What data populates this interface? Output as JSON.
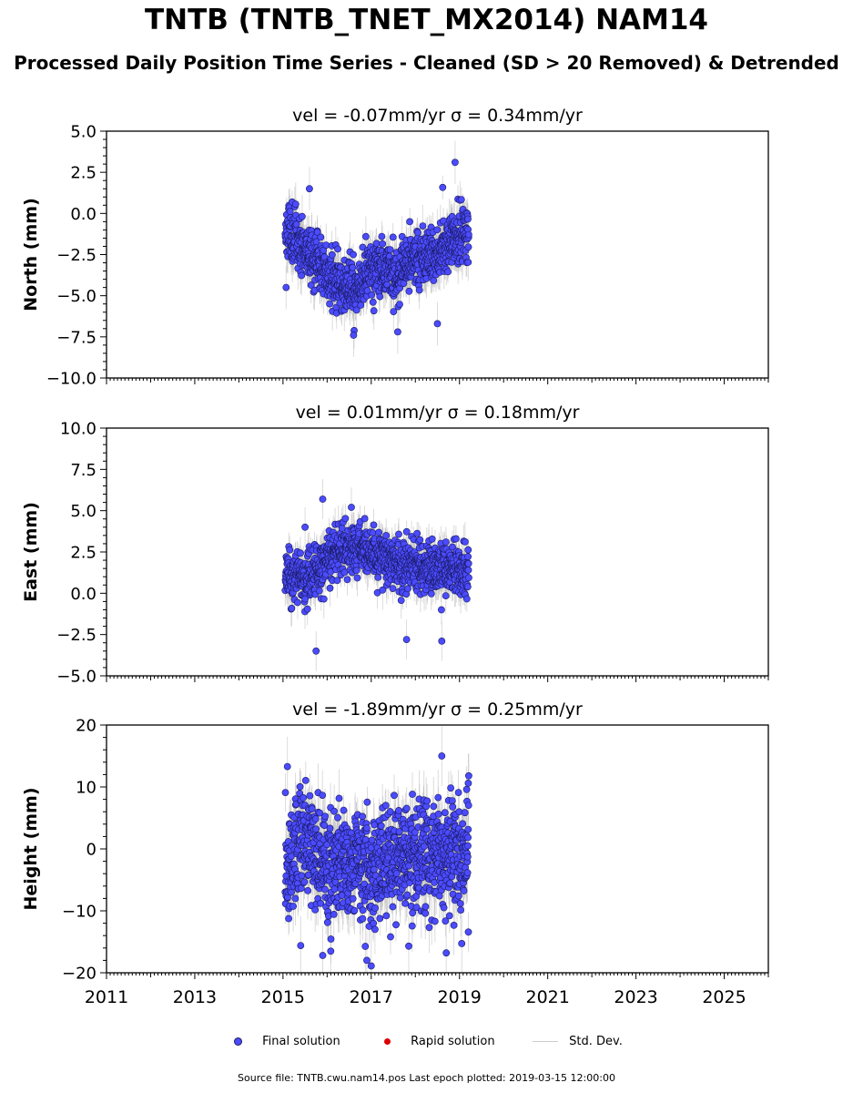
{
  "title": "TNTB (TNTB_TNET_MX2014) NAM14",
  "subtitle": "Processed Daily Position Time Series - Cleaned (SD > 20 Removed) & Detrended",
  "colors": {
    "final": "#4b4bff",
    "final_edge": "#1a1a60",
    "rapid": "#dd0000",
    "std": "#999999"
  },
  "legend": {
    "final": "Final solution",
    "rapid": "Rapid solution",
    "std": "Std. Dev."
  },
  "footer": "Source file: TNTB.cwu.nam14.pos  Last epoch plotted: 2019-03-15 12:00:00",
  "chart_data": [
    {
      "type": "scatter",
      "name": "north",
      "title": "vel = -0.07mm/yr   σ = 0.34mm/yr",
      "ylabel": "North (mm)",
      "xlim": [
        2011,
        2026
      ],
      "ylim": [
        -10,
        5
      ],
      "yticks": [
        5.0,
        2.5,
        0.0,
        -2.5,
        -5.0,
        -7.5,
        -10.0
      ],
      "ytick_labels": [
        "5.0",
        "2.5",
        "0.0",
        "−2.5",
        "−5.0",
        "−7.5",
        "−10.0"
      ],
      "time_range": [
        2015.05,
        2019.21
      ],
      "trend_points": [
        [
          2015.1,
          -1.0
        ],
        [
          2015.5,
          -2.0
        ],
        [
          2015.9,
          -3.3
        ],
        [
          2016.3,
          -4.3
        ],
        [
          2016.6,
          -4.6
        ],
        [
          2016.9,
          -3.6
        ],
        [
          2017.3,
          -3.2
        ],
        [
          2017.6,
          -3.7
        ],
        [
          2017.9,
          -2.8
        ],
        [
          2018.3,
          -2.6
        ],
        [
          2018.6,
          -2.4
        ],
        [
          2019.0,
          -1.2
        ],
        [
          2019.2,
          -1.5
        ]
      ],
      "noise_sd": 0.85,
      "error_sd": 1.1,
      "outliers": [
        [
          2015.07,
          -4.5
        ],
        [
          2016.6,
          -7.4
        ],
        [
          2017.6,
          -7.2
        ],
        [
          2018.5,
          -6.7
        ],
        [
          2018.9,
          3.1
        ],
        [
          2015.6,
          1.5
        ]
      ],
      "seed": 11
    },
    {
      "type": "scatter",
      "name": "east",
      "title": "vel = 0.01mm/yr   σ = 0.18mm/yr",
      "ylabel": "East (mm)",
      "xlim": [
        2011,
        2026
      ],
      "ylim": [
        -5,
        10
      ],
      "yticks": [
        10.0,
        7.5,
        5.0,
        2.5,
        0.0,
        -2.5,
        -5.0
      ],
      "ytick_labels": [
        "10.0",
        "7.5",
        "5.0",
        "2.5",
        "0.0",
        "−2.5",
        "−5.0"
      ],
      "time_range": [
        2015.05,
        2019.21
      ],
      "trend_points": [
        [
          2015.1,
          1.0
        ],
        [
          2015.5,
          0.8
        ],
        [
          2015.8,
          1.5
        ],
        [
          2016.1,
          2.3
        ],
        [
          2016.5,
          2.8
        ],
        [
          2016.9,
          2.4
        ],
        [
          2017.3,
          2.2
        ],
        [
          2017.7,
          1.8
        ],
        [
          2018.1,
          1.6
        ],
        [
          2018.5,
          1.6
        ],
        [
          2018.9,
          1.4
        ],
        [
          2019.2,
          1.2
        ]
      ],
      "noise_sd": 0.75,
      "error_sd": 1.0,
      "outliers": [
        [
          2015.75,
          -3.5
        ],
        [
          2015.9,
          5.7
        ],
        [
          2016.55,
          5.2
        ],
        [
          2017.8,
          -2.8
        ],
        [
          2018.6,
          -2.9
        ],
        [
          2015.5,
          4.0
        ]
      ],
      "seed": 23
    },
    {
      "type": "scatter",
      "name": "height",
      "title": "vel = -1.89mm/yr   σ = 0.25mm/yr",
      "ylabel": "Height (mm)",
      "xlim": [
        2011,
        2026
      ],
      "ylim": [
        -20,
        20
      ],
      "yticks": [
        20,
        10,
        0,
        -10,
        -20
      ],
      "ytick_labels": [
        "20",
        "10",
        "0",
        "−10",
        "−20"
      ],
      "time_range": [
        2015.05,
        2019.21
      ],
      "trend_points": [
        [
          2015.1,
          -2.0
        ],
        [
          2015.5,
          2.0
        ],
        [
          2015.9,
          -3.0
        ],
        [
          2016.3,
          -2.0
        ],
        [
          2016.7,
          -2.0
        ],
        [
          2017.0,
          -3.0
        ],
        [
          2017.4,
          -1.0
        ],
        [
          2017.8,
          -1.0
        ],
        [
          2018.2,
          -1.5
        ],
        [
          2018.6,
          0.0
        ],
        [
          2019.0,
          -2.0
        ],
        [
          2019.2,
          -1.0
        ]
      ],
      "noise_sd": 4.5,
      "error_sd": 4.0,
      "outliers": [
        [
          2015.1,
          13.3
        ],
        [
          2015.4,
          -15.6
        ],
        [
          2015.9,
          -17.2
        ],
        [
          2016.9,
          -18.0
        ],
        [
          2017.0,
          -18.9
        ],
        [
          2018.6,
          15.0
        ],
        [
          2018.7,
          -16.8
        ],
        [
          2019.2,
          10.6
        ],
        [
          2017.85,
          -15.7
        ]
      ],
      "seed": 37
    }
  ],
  "xticks": [
    2011,
    2013,
    2015,
    2017,
    2019,
    2021,
    2023,
    2025
  ],
  "xtick_labels": [
    "2011",
    "2013",
    "2015",
    "2017",
    "2019",
    "2021",
    "2023",
    "2025"
  ]
}
